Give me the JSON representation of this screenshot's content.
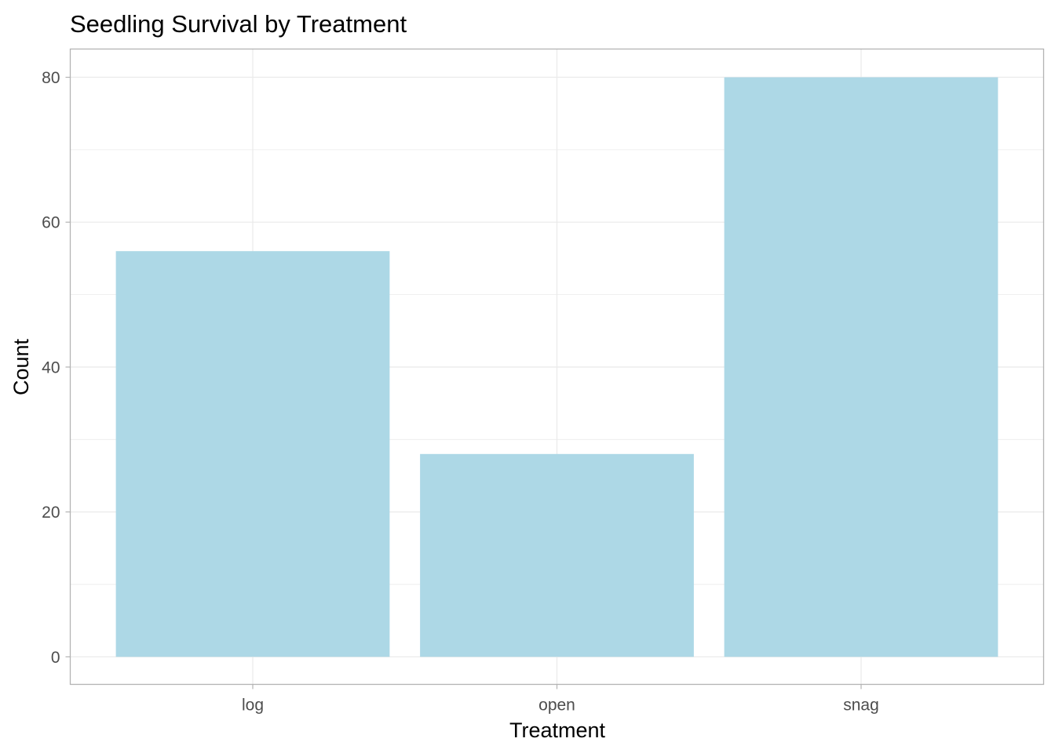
{
  "chart_data": {
    "type": "bar",
    "title": "Seedling Survival by Treatment",
    "xlabel": "Treatment",
    "ylabel": "Count",
    "categories": [
      "log",
      "open",
      "snag"
    ],
    "values": [
      56,
      28,
      80
    ],
    "ylim": [
      -3.8,
      83.9
    ],
    "yticks": [
      0,
      20,
      40,
      60,
      80
    ],
    "ytick_labels": [
      "0",
      "20",
      "40",
      "60",
      "80"
    ],
    "grid": true,
    "legend": "none",
    "bar_color": "#ADD8E6",
    "grid_color": "#EBEBEB",
    "panel_border_color": "#B3B3B3"
  }
}
